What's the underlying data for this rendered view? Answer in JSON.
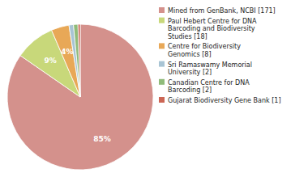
{
  "chart_data": {
    "type": "pie",
    "categories": [
      "Mined from GenBank, NCBI [171]",
      "Paul Hebert Centre for DNA\nBarcoding and Biodiversity\nStudies [18]",
      "Centre for Biodiversity\nGenomics [8]",
      "Sri Ramaswamy Memorial\nUniversity [2]",
      "Canadian Centre for DNA\nBarcoding [2]",
      "Gujarat Biodiversity Gene Bank [1]"
    ],
    "values": [
      171,
      18,
      8,
      2,
      2,
      1
    ],
    "value_labels": [
      "85%",
      "9%",
      "4%",
      null,
      null,
      null
    ],
    "colors": [
      "#d4918c",
      "#c8d87a",
      "#e8a857",
      "#a8c4d4",
      "#90bb7a",
      "#cc6655"
    ],
    "data_labels": true,
    "legend": "right"
  }
}
